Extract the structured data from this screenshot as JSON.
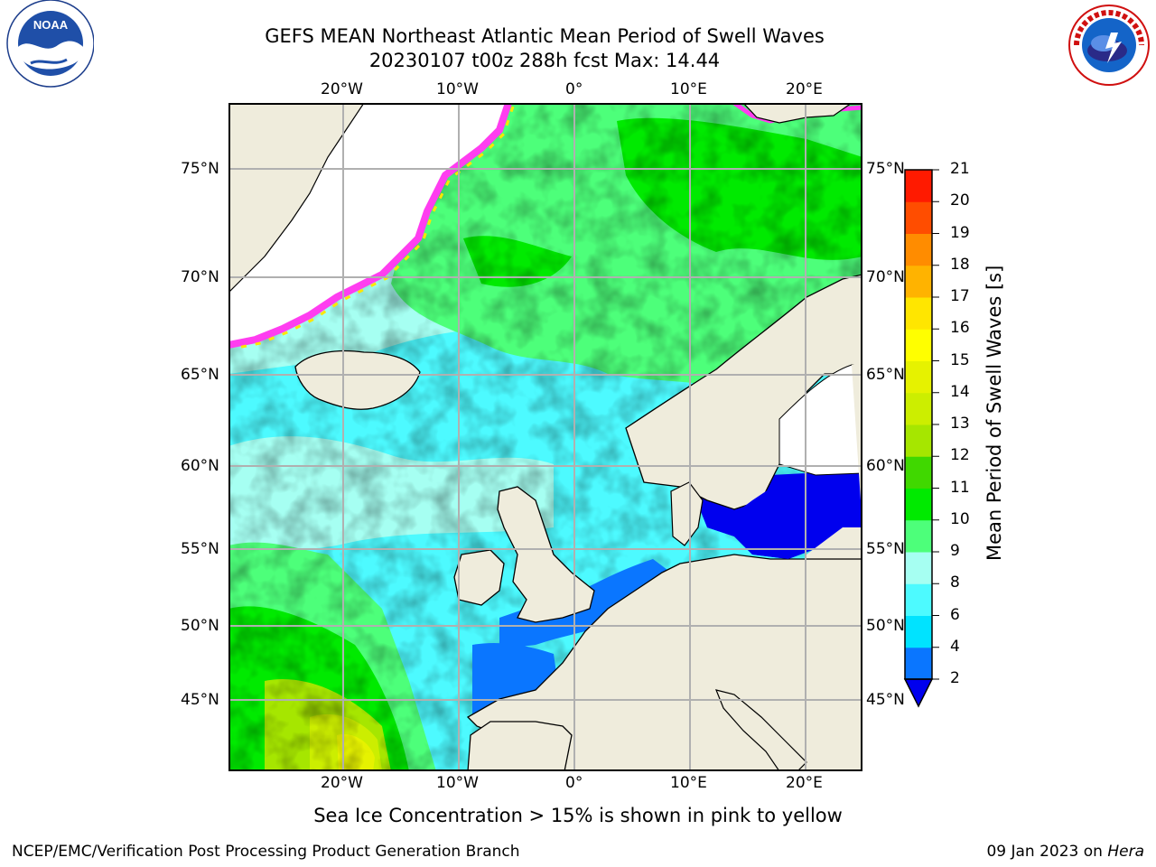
{
  "header": {
    "title_line1": "GEFS MEAN Northeast Atlantic Mean Period of Swell Waves",
    "title_line2": "20230107 t00z 288h fcst   Max: 14.44"
  },
  "logos": {
    "noaa_text": "NOAA",
    "noaa_ring": "NATIONAL OCEANIC AND ATMOSPHERIC ADMINISTRATION · U.S. DEPARTMENT OF COMMERCE",
    "nws_ring": "NATIONAL WEATHER SERVICE"
  },
  "map": {
    "lon_labels": [
      "20°W",
      "10°W",
      "0°",
      "10°E",
      "20°E"
    ],
    "lat_labels": [
      "75°N",
      "70°N",
      "65°N",
      "60°N",
      "55°N",
      "50°N",
      "45°N"
    ],
    "colors": {
      "land": "#efecdc",
      "ice": "#ffffff",
      "grid": "#b0b0b0"
    }
  },
  "colorbar": {
    "title": "Mean Period of Swell Waves [s]",
    "tick_labels": [
      "2",
      "4",
      "6",
      "8",
      "9",
      "10",
      "11",
      "12",
      "13",
      "14",
      "15",
      "16",
      "17",
      "18",
      "19",
      "20",
      "21"
    ],
    "colors": [
      "#0a76ff",
      "#00e3ff",
      "#4dfaff",
      "#a6fff2",
      "#4dff7a",
      "#00ea00",
      "#40d800",
      "#a6e600",
      "#ccee00",
      "#e6f200",
      "#ffff00",
      "#ffe600",
      "#ffb300",
      "#ff8c00",
      "#ff4d00",
      "#ff1a00"
    ],
    "under_color": "#0000ee"
  },
  "notes": {
    "sea_ice": "Sea Ice Concentration > 15% is shown in pink to yellow"
  },
  "footer": {
    "left": "NCEP/EMC/Verification Post Processing Product Generation Branch",
    "right_prefix": "09 Jan 2023 on ",
    "right_italic": "Hera"
  }
}
